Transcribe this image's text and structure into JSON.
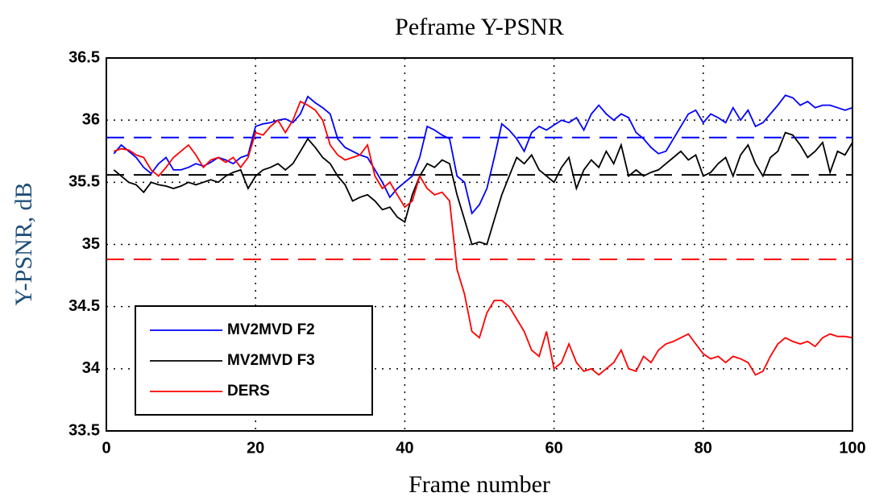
{
  "chart_data": {
    "type": "line",
    "title": "Peframe Y-PSNR",
    "xlabel": "Frame number",
    "ylabel": "Y-PSNR, dB",
    "x": [
      1,
      2,
      3,
      4,
      5,
      6,
      7,
      8,
      9,
      10,
      11,
      12,
      13,
      14,
      15,
      16,
      17,
      18,
      19,
      20,
      21,
      22,
      23,
      24,
      25,
      26,
      27,
      28,
      29,
      30,
      31,
      32,
      33,
      34,
      35,
      36,
      37,
      38,
      39,
      40,
      41,
      42,
      43,
      44,
      45,
      46,
      47,
      48,
      49,
      50,
      51,
      52,
      53,
      54,
      55,
      56,
      57,
      58,
      59,
      60,
      61,
      62,
      63,
      64,
      65,
      66,
      67,
      68,
      69,
      70,
      71,
      72,
      73,
      74,
      75,
      76,
      77,
      78,
      79,
      80,
      81,
      82,
      83,
      84,
      85,
      86,
      87,
      88,
      89,
      90,
      91,
      92,
      93,
      94,
      95,
      96,
      97,
      98,
      99,
      100
    ],
    "series": [
      {
        "name": "MV2MVD F2",
        "color": "#0000ff",
        "values": [
          35.73,
          35.8,
          35.75,
          35.7,
          35.62,
          35.57,
          35.65,
          35.7,
          35.6,
          35.6,
          35.62,
          35.65,
          35.63,
          35.66,
          35.7,
          35.68,
          35.65,
          35.7,
          35.72,
          35.95,
          35.97,
          35.98,
          36.0,
          36.01,
          35.98,
          36.05,
          36.19,
          36.14,
          36.1,
          36.05,
          35.85,
          35.78,
          35.75,
          35.72,
          35.7,
          35.6,
          35.5,
          35.38,
          35.45,
          35.5,
          35.55,
          35.7,
          35.95,
          35.92,
          35.88,
          35.85,
          35.55,
          35.5,
          35.25,
          35.32,
          35.45,
          35.7,
          35.97,
          35.92,
          35.85,
          35.75,
          35.9,
          35.95,
          35.92,
          35.96,
          36.0,
          35.98,
          36.02,
          35.92,
          36.05,
          36.12,
          36.05,
          36.0,
          36.05,
          36.02,
          35.9,
          35.85,
          35.78,
          35.73,
          35.75,
          35.85,
          35.95,
          36.05,
          36.08,
          35.98,
          36.05,
          36.02,
          35.98,
          36.1,
          36.0,
          36.08,
          35.95,
          35.98,
          36.05,
          36.12,
          36.2,
          36.18,
          36.12,
          36.15,
          36.1,
          36.12,
          36.12,
          36.1,
          36.08,
          36.1
        ]
      },
      {
        "name": "MV2MVD F3",
        "color": "#000000",
        "values": [
          35.6,
          35.55,
          35.5,
          35.48,
          35.42,
          35.5,
          35.48,
          35.47,
          35.45,
          35.47,
          35.5,
          35.48,
          35.5,
          35.52,
          35.5,
          35.55,
          35.58,
          35.6,
          35.45,
          35.55,
          35.6,
          35.62,
          35.65,
          35.6,
          35.65,
          35.75,
          35.85,
          35.78,
          35.7,
          35.65,
          35.55,
          35.48,
          35.35,
          35.38,
          35.4,
          35.35,
          35.28,
          35.3,
          35.22,
          35.18,
          35.4,
          35.55,
          35.65,
          35.62,
          35.68,
          35.65,
          35.4,
          35.2,
          35.0,
          35.02,
          35.0,
          35.2,
          35.4,
          35.55,
          35.7,
          35.65,
          35.72,
          35.6,
          35.55,
          35.5,
          35.62,
          35.7,
          35.45,
          35.6,
          35.68,
          35.62,
          35.75,
          35.65,
          35.8,
          35.55,
          35.6,
          35.55,
          35.58,
          35.6,
          35.65,
          35.7,
          35.75,
          35.68,
          35.72,
          35.55,
          35.58,
          35.65,
          35.7,
          35.55,
          35.72,
          35.8,
          35.65,
          35.55,
          35.7,
          35.75,
          35.9,
          35.88,
          35.8,
          35.7,
          35.75,
          35.82,
          35.58,
          35.75,
          35.72,
          35.82
        ]
      },
      {
        "name": "DERS",
        "color": "#ff0000",
        "values": [
          35.75,
          35.77,
          35.76,
          35.72,
          35.7,
          35.6,
          35.55,
          35.62,
          35.7,
          35.75,
          35.8,
          35.72,
          35.62,
          35.68,
          35.7,
          35.66,
          35.7,
          35.62,
          35.7,
          35.9,
          35.88,
          35.95,
          36.0,
          35.9,
          36.0,
          36.15,
          36.12,
          36.08,
          36.0,
          35.8,
          35.72,
          35.68,
          35.7,
          35.72,
          35.8,
          35.55,
          35.45,
          35.5,
          35.4,
          35.3,
          35.35,
          35.55,
          35.45,
          35.4,
          35.42,
          35.35,
          34.8,
          34.6,
          34.3,
          34.25,
          34.45,
          34.55,
          34.55,
          34.5,
          34.4,
          34.3,
          34.15,
          34.1,
          34.3,
          34.0,
          34.05,
          34.2,
          34.05,
          33.98,
          34.0,
          33.95,
          34.0,
          34.05,
          34.15,
          34.0,
          33.98,
          34.1,
          34.05,
          34.15,
          34.2,
          34.22,
          34.25,
          34.28,
          34.2,
          34.12,
          34.08,
          34.1,
          34.05,
          34.1,
          34.08,
          34.05,
          33.95,
          33.98,
          34.1,
          34.2,
          34.25,
          34.22,
          34.2,
          34.22,
          34.18,
          34.25,
          34.28,
          34.26,
          34.26,
          34.25
        ]
      }
    ],
    "hlines": [
      {
        "value": 35.86,
        "color": "#0000ff"
      },
      {
        "value": 35.56,
        "color": "#000000"
      },
      {
        "value": 34.88,
        "color": "#ff0000"
      }
    ],
    "xlim": [
      0,
      100
    ],
    "xticks": [
      0,
      20,
      40,
      60,
      80,
      100
    ],
    "ylim": [
      33.5,
      36.5
    ],
    "yticks": [
      33.5,
      34,
      34.5,
      35,
      35.5,
      36,
      36.5
    ],
    "grid": true,
    "legend": "lower left"
  }
}
